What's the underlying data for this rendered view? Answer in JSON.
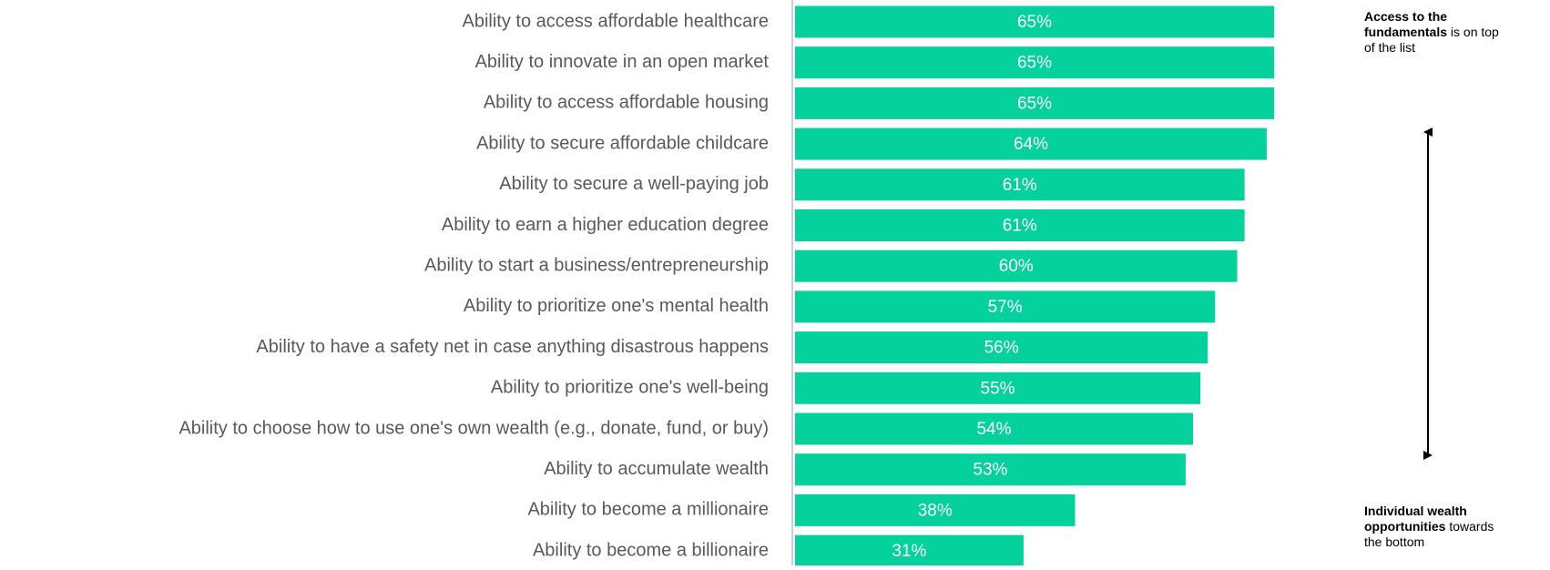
{
  "chart_data": {
    "type": "bar",
    "orientation": "horizontal",
    "color": "#05d19c",
    "categories": [
      "Ability to access affordable healthcare",
      "Ability to innovate in an open market",
      "Ability to access affordable housing",
      "Ability to secure affordable childcare",
      "Ability to secure a well-paying job",
      "Ability to earn a higher education degree",
      "Ability to start a business/entrepreneurship",
      "Ability to prioritize one's mental health",
      "Ability to have a safety net in case anything disastrous happens",
      "Ability to prioritize one's well-being",
      "Ability to choose how to use one's own wealth (e.g., donate, fund, or buy)",
      "Ability to accumulate wealth",
      "Ability to become a millionaire",
      "Ability to become a billionaire"
    ],
    "values": [
      65,
      65,
      65,
      64,
      61,
      61,
      60,
      57,
      56,
      55,
      54,
      53,
      38,
      31
    ],
    "value_labels": [
      "65%",
      "65%",
      "65%",
      "64%",
      "61%",
      "61%",
      "60%",
      "57%",
      "56%",
      "55%",
      "54%",
      "53%",
      "38%",
      "31%"
    ],
    "annotations": [
      {
        "bold": "Access to the fundamentals",
        "text": "is on top of the list"
      },
      {
        "bold": "Individual wealth opportunities",
        "text": "towards the bottom"
      }
    ]
  }
}
